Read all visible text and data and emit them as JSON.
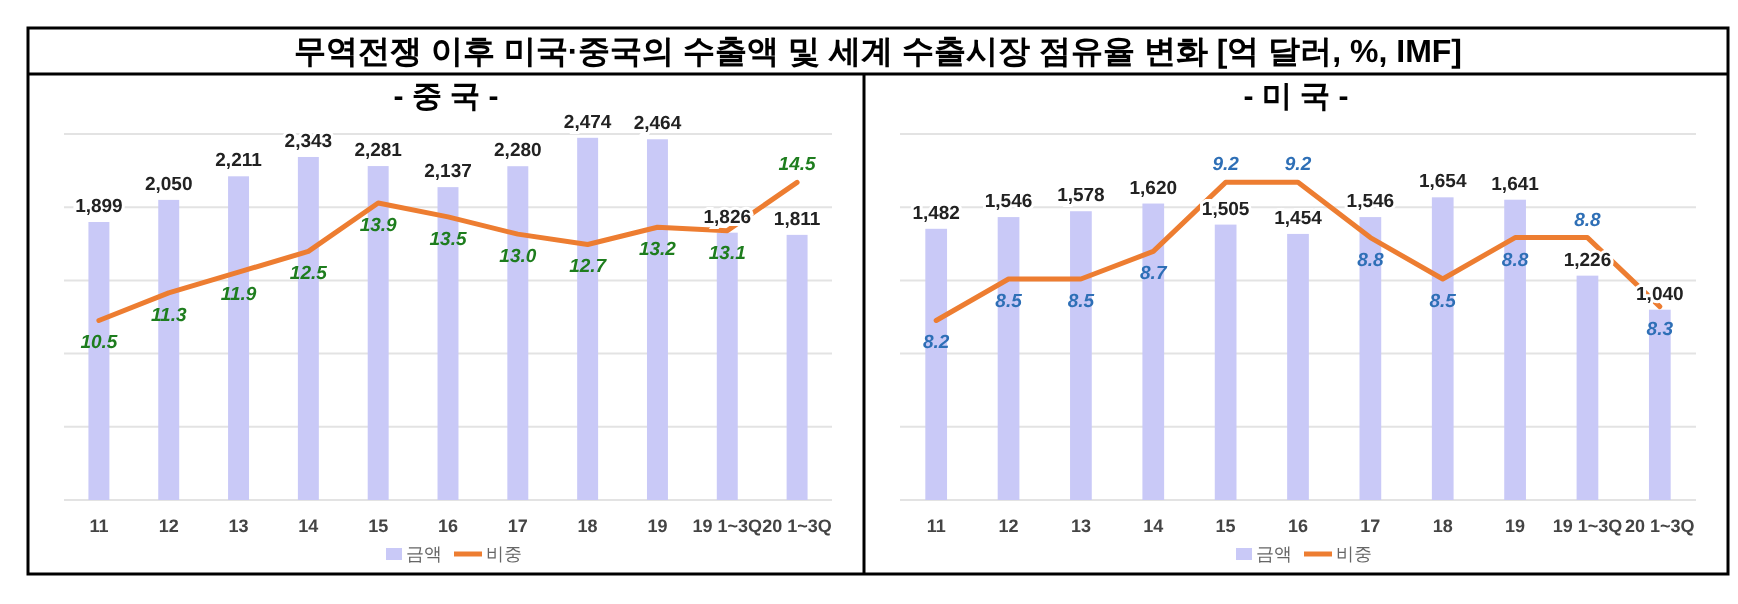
{
  "chart_data": [
    {
      "type": "other",
      "title": "무역전쟁 이후 미국·중국의 수출액 및 세계 수출시장 점유율 변화 [억 달러, %, IMF]"
    },
    {
      "type": "bar",
      "title": "- 중 국 -",
      "categories": [
        "11",
        "12",
        "13",
        "14",
        "15",
        "16",
        "17",
        "18",
        "19",
        "19 1~3Q",
        "20 1~3Q"
      ],
      "series": [
        {
          "name": "금액",
          "type": "bar",
          "color": "#c9c9f7",
          "values": [
            1899,
            2050,
            2211,
            2343,
            2281,
            2137,
            2280,
            2474,
            2464,
            1826,
            1811
          ],
          "value_labels": [
            "1,899",
            "2,050",
            "2,211",
            "2,343",
            "2,281",
            "2,137",
            "2,280",
            "2,474",
            "2,464",
            "1,826",
            "1,811"
          ]
        },
        {
          "name": "비중",
          "type": "line",
          "axis": "y2",
          "color": "#ed7d31",
          "values": [
            10.5,
            11.3,
            11.9,
            12.5,
            13.9,
            13.5,
            13.0,
            12.7,
            13.2,
            13.1,
            14.5
          ],
          "value_labels": [
            "10.5",
            "11.3",
            "11.9",
            "12.5",
            "13.9",
            "13.5",
            "13.0",
            "12.7",
            "13.2",
            "13.1",
            "14.5"
          ]
        }
      ],
      "grid": "y",
      "legend": "bottom",
      "tick_labels": "x"
    },
    {
      "type": "bar",
      "title": "- 미 국 -",
      "categories": [
        "11",
        "12",
        "13",
        "14",
        "15",
        "16",
        "17",
        "18",
        "19",
        "19 1~3Q",
        "20 1~3Q"
      ],
      "series": [
        {
          "name": "금액",
          "type": "bar",
          "color": "#c9c9f7",
          "values": [
            1482,
            1546,
            1578,
            1620,
            1505,
            1454,
            1546,
            1654,
            1641,
            1226,
            1040
          ],
          "value_labels": [
            "1,482",
            "1,546",
            "1,578",
            "1,620",
            "1,505",
            "1,454",
            "1,546",
            "1,654",
            "1,641",
            "1,226",
            "1,040"
          ]
        },
        {
          "name": "비중",
          "type": "line",
          "axis": "y2",
          "color": "#ed7d31",
          "values": [
            8.2,
            8.5,
            8.5,
            8.7,
            9.2,
            9.2,
            8.8,
            8.5,
            8.8,
            8.8,
            8.3
          ],
          "value_labels": [
            "8.2",
            "8.5",
            "8.5",
            "8.7",
            "9.2",
            "9.2",
            "8.8",
            "8.5",
            "8.8",
            "8.8",
            "8.3"
          ]
        }
      ],
      "grid": "y",
      "legend": "bottom",
      "tick_labels": "x"
    }
  ]
}
